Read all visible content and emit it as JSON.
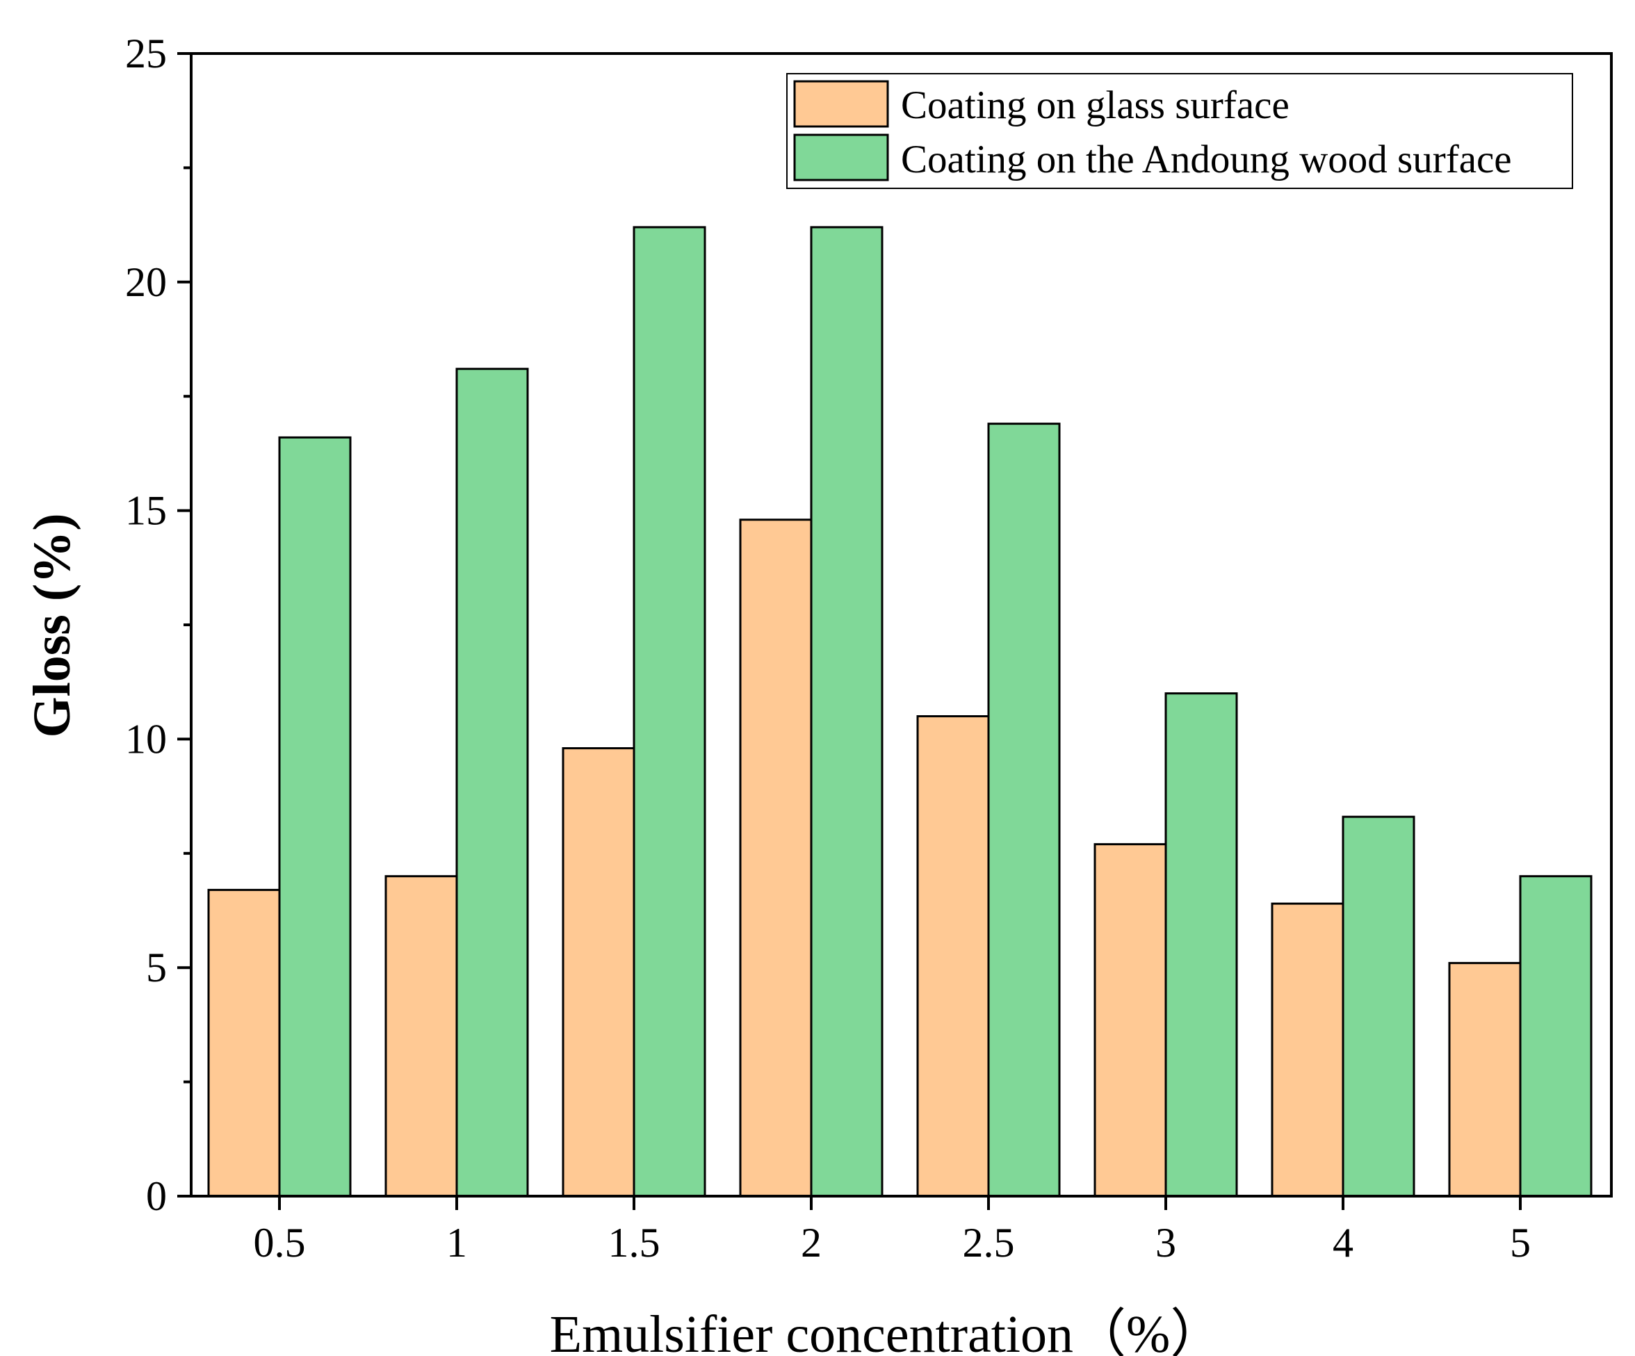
{
  "chart_data": {
    "type": "bar",
    "title": "",
    "xlabel": "Emulsifier concentration（%）",
    "ylabel": "Gloss (%)",
    "categories": [
      "0.5",
      "1",
      "1.5",
      "2",
      "2.5",
      "3",
      "4",
      "5"
    ],
    "series": [
      {
        "name": "Coating on glass surface",
        "color": "#FFC994",
        "values": [
          6.7,
          7.0,
          9.8,
          14.8,
          10.5,
          7.7,
          6.4,
          5.1
        ]
      },
      {
        "name": "Coating on the Andoung wood surface",
        "color": "#80D898",
        "values": [
          16.6,
          18.1,
          21.2,
          21.2,
          16.9,
          11.0,
          8.3,
          7.0
        ]
      }
    ],
    "ylim": [
      0,
      25
    ],
    "yticks": [
      0,
      5,
      10,
      15,
      20,
      25
    ],
    "yticks_minor": [
      2.5,
      7.5,
      12.5,
      17.5,
      22.5
    ],
    "grid": false,
    "legend_position": "top-right"
  }
}
